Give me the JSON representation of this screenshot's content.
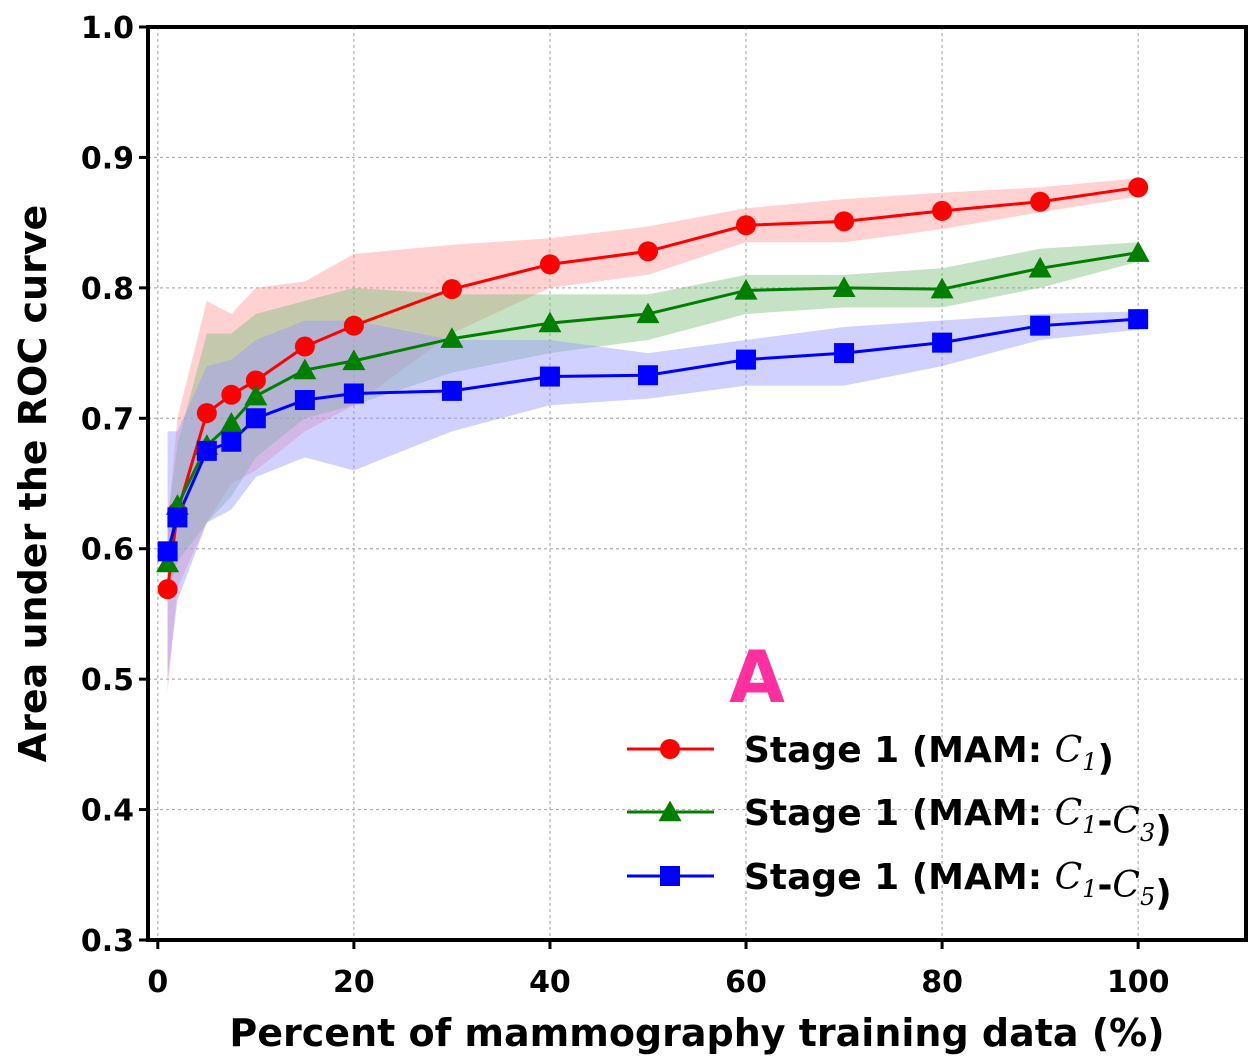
{
  "chart_data": {
    "type": "line",
    "xlabel": "Percent of mammography training data (%)",
    "ylabel": "Area under the ROC curve",
    "xlim": [
      -1,
      111
    ],
    "ylim": [
      0.3,
      1.0
    ],
    "xticks": [
      0,
      20,
      40,
      60,
      80,
      100
    ],
    "yticks": [
      0.3,
      0.4,
      0.5,
      0.6,
      0.7,
      0.8,
      0.9,
      1.0
    ],
    "xtick_labels": [
      "0",
      "20",
      "40",
      "60",
      "80",
      "100"
    ],
    "ytick_labels": [
      "0.3",
      "0.4",
      "0.5",
      "0.6",
      "0.7",
      "0.8",
      "0.9",
      "1.0"
    ],
    "grid": true,
    "legend_position": "lower-right",
    "annotation": "A",
    "annotation_color": "#ff2fa0",
    "x": [
      1,
      2,
      5,
      7.5,
      10,
      15,
      20,
      30,
      40,
      50,
      60,
      70,
      80,
      90,
      100
    ],
    "series": [
      {
        "name": "Stage 1 (MAM: C1)",
        "legend_prefix": "Stage 1 (MAM: ",
        "legend_math": [
          {
            "t": "C",
            "sub": "1"
          }
        ],
        "legend_suffix": ")",
        "color": "#ff0000",
        "band_color": "#ff9999",
        "marker": "circle",
        "values": [
          0.569,
          0.628,
          0.704,
          0.718,
          0.729,
          0.755,
          0.771,
          0.799,
          0.818,
          0.828,
          0.848,
          0.851,
          0.859,
          0.866,
          0.877
        ],
        "lower": [
          0.49,
          0.57,
          0.62,
          0.65,
          0.66,
          0.69,
          0.71,
          0.765,
          0.8,
          0.81,
          0.835,
          0.835,
          0.845,
          0.858,
          0.87
        ],
        "upper": [
          0.62,
          0.7,
          0.79,
          0.78,
          0.8,
          0.805,
          0.826,
          0.833,
          0.838,
          0.847,
          0.861,
          0.868,
          0.873,
          0.877,
          0.884
        ]
      },
      {
        "name": "Stage 1 (MAM: C1-C3)",
        "legend_prefix": "Stage 1 (MAM: ",
        "legend_math": [
          {
            "t": "C",
            "sub": "1"
          },
          {
            "t": "-",
            "sub": ""
          },
          {
            "t": "C",
            "sub": "3"
          }
        ],
        "legend_suffix": ")",
        "color": "#007f00",
        "band_color": "#7fbf7f",
        "marker": "triangle",
        "values": [
          0.589,
          0.633,
          0.679,
          0.696,
          0.717,
          0.737,
          0.744,
          0.761,
          0.773,
          0.78,
          0.798,
          0.8,
          0.799,
          0.815,
          0.827
        ],
        "lower": [
          0.565,
          0.59,
          0.62,
          0.64,
          0.67,
          0.7,
          0.71,
          0.735,
          0.75,
          0.76,
          0.78,
          0.785,
          0.785,
          0.8,
          0.82
        ],
        "upper": [
          0.62,
          0.68,
          0.765,
          0.765,
          0.78,
          0.79,
          0.8,
          0.795,
          0.795,
          0.795,
          0.81,
          0.81,
          0.815,
          0.83,
          0.835
        ]
      },
      {
        "name": "Stage 1 (MAM: C1-C5)",
        "legend_prefix": "Stage 1 (MAM: ",
        "legend_math": [
          {
            "t": "C",
            "sub": "1"
          },
          {
            "t": "-",
            "sub": ""
          },
          {
            "t": "C",
            "sub": "5"
          }
        ],
        "legend_suffix": ")",
        "color": "#0000ff",
        "band_color": "#9999ff",
        "marker": "square",
        "values": [
          0.598,
          0.624,
          0.675,
          0.682,
          0.7,
          0.714,
          0.719,
          0.721,
          0.732,
          0.733,
          0.745,
          0.75,
          0.758,
          0.771,
          0.776
        ],
        "lower": [
          0.5,
          0.56,
          0.62,
          0.63,
          0.655,
          0.67,
          0.66,
          0.69,
          0.71,
          0.715,
          0.725,
          0.725,
          0.74,
          0.76,
          0.768
        ],
        "upper": [
          0.69,
          0.69,
          0.74,
          0.745,
          0.76,
          0.775,
          0.775,
          0.76,
          0.76,
          0.75,
          0.76,
          0.77,
          0.775,
          0.78,
          0.782
        ]
      }
    ]
  }
}
